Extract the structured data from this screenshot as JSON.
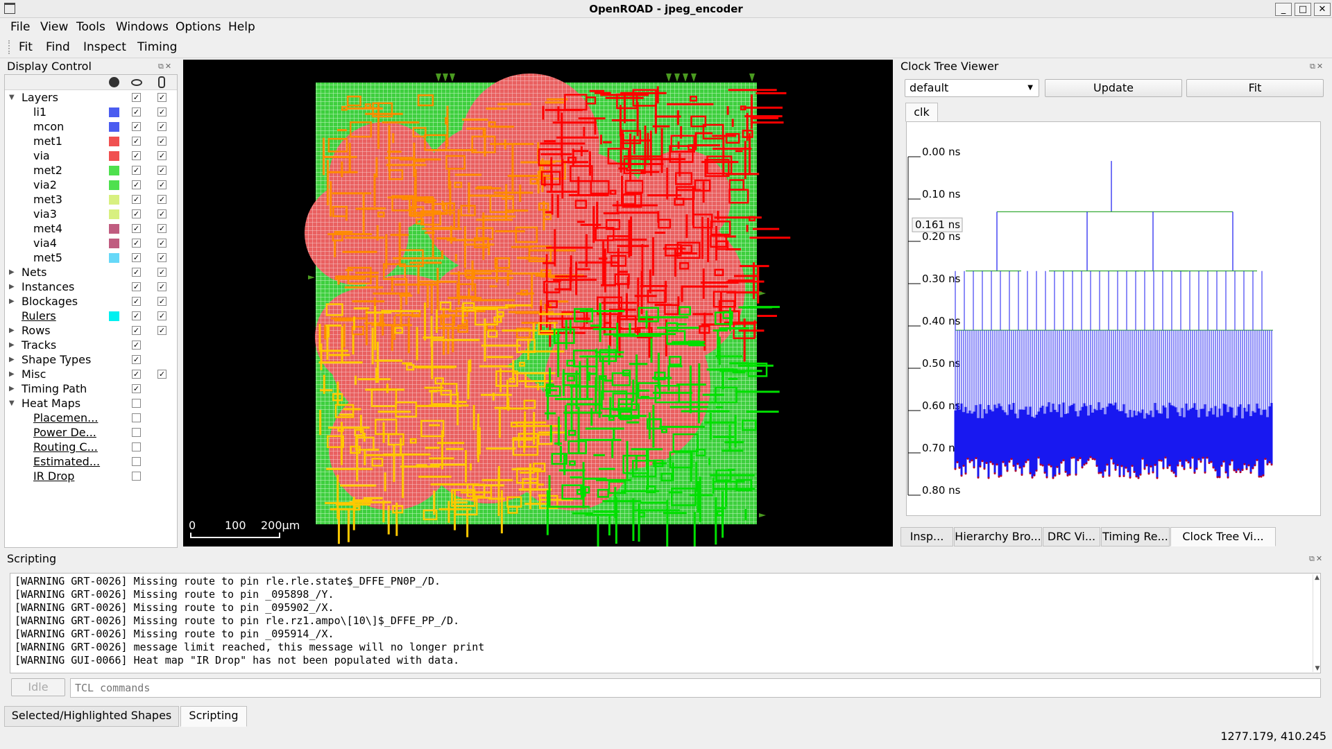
{
  "window": {
    "title": "OpenROAD - jpeg_encoder"
  },
  "menu": [
    "File",
    "View",
    "Tools",
    "Windows",
    "Options",
    "Help"
  ],
  "toolbar": [
    "Fit",
    "Find",
    "Inspect",
    "Timing"
  ],
  "display_control": {
    "title": "Display Control",
    "header_icons": [
      "palette-icon",
      "eye-icon",
      "pointer-icon"
    ],
    "rows": [
      {
        "label": "Layers",
        "level": 0,
        "expanded": true,
        "vis": true,
        "sel": true
      },
      {
        "label": "li1",
        "level": 1,
        "color": "#4a5cf0",
        "vis": true,
        "sel": true
      },
      {
        "label": "mcon",
        "level": 1,
        "color": "#4a5cf0",
        "vis": true,
        "sel": true
      },
      {
        "label": "met1",
        "level": 1,
        "color": "#f05050",
        "vis": true,
        "sel": true
      },
      {
        "label": "via",
        "level": 1,
        "color": "#f05050",
        "vis": true,
        "sel": true
      },
      {
        "label": "met2",
        "level": 1,
        "color": "#4ee04e",
        "vis": true,
        "sel": true
      },
      {
        "label": "via2",
        "level": 1,
        "color": "#4ee04e",
        "vis": true,
        "sel": true
      },
      {
        "label": "met3",
        "level": 1,
        "color": "#d8f080",
        "vis": true,
        "sel": true
      },
      {
        "label": "via3",
        "level": 1,
        "color": "#d8f080",
        "vis": true,
        "sel": true
      },
      {
        "label": "met4",
        "level": 1,
        "color": "#c05c80",
        "vis": true,
        "sel": true
      },
      {
        "label": "via4",
        "level": 1,
        "color": "#c05c80",
        "vis": true,
        "sel": true
      },
      {
        "label": "met5",
        "level": 1,
        "color": "#66d8f8",
        "vis": true,
        "sel": true
      },
      {
        "label": "Nets",
        "level": 0,
        "expanded": false,
        "vis": true,
        "sel": true
      },
      {
        "label": "Instances",
        "level": 0,
        "expanded": false,
        "vis": true,
        "sel": true
      },
      {
        "label": "Blockages",
        "level": 0,
        "expanded": false,
        "vis": true,
        "sel": true
      },
      {
        "label": "Rulers",
        "level": 0,
        "link": true,
        "color": "#00f0f0",
        "vis": true,
        "sel": true
      },
      {
        "label": "Rows",
        "level": 0,
        "expanded": false,
        "vis": true,
        "sel": true
      },
      {
        "label": "Tracks",
        "level": 0,
        "expanded": false,
        "vis": true
      },
      {
        "label": "Shape Types",
        "level": 0,
        "expanded": false,
        "vis": true
      },
      {
        "label": "Misc",
        "level": 0,
        "expanded": false,
        "vis": true,
        "sel": true
      },
      {
        "label": "Timing Path",
        "level": 0,
        "expanded": false,
        "vis": true
      },
      {
        "label": "Heat Maps",
        "level": 0,
        "expanded": true,
        "vis": false
      },
      {
        "label": "Placemen...",
        "level": 1,
        "link": true,
        "vis": false
      },
      {
        "label": "Power De...",
        "level": 1,
        "link": true,
        "vis": false
      },
      {
        "label": "Routing C...",
        "level": 1,
        "link": true,
        "vis": false
      },
      {
        "label": "Estimated...",
        "level": 1,
        "link": true,
        "vis": false
      },
      {
        "label": "IR Drop",
        "level": 1,
        "link": true,
        "vis": false
      }
    ]
  },
  "layout_view": {
    "scale_labels": [
      "0",
      "100",
      "200µm"
    ]
  },
  "clock_tree_viewer": {
    "title": "Clock Tree Viewer",
    "corner_select": "default",
    "update_label": "Update",
    "fit_label": "Fit",
    "clock_tab": "clk",
    "ticks": [
      "0.00 ns",
      "0.10 ns",
      "0.20 ns",
      "0.30 ns",
      "0.40 ns",
      "0.50 ns",
      "0.60 ns",
      "0.70 ns",
      "0.80 ns"
    ],
    "marker": "0.161 ns"
  },
  "right_tabs": [
    "Insp...",
    "Hierarchy Bro...",
    "DRC Vi...",
    "Timing Re...",
    "Clock Tree Vi..."
  ],
  "scripting": {
    "title": "Scripting",
    "log": [
      "[WARNING GRT-0026] Missing route to pin rle.rle.state$_DFFE_PN0P_/D.",
      "[WARNING GRT-0026] Missing route to pin _095898_/Y.",
      "[WARNING GRT-0026] Missing route to pin _095902_/X.",
      "[WARNING GRT-0026] Missing route to pin rle.rz1.ampo\\[10\\]$_DFFE_PP_/D.",
      "[WARNING GRT-0026] Missing route to pin _095914_/X.",
      "[WARNING GRT-0026] message limit reached, this message will no longer print",
      "[WARNING GUI-0066] Heat map \"IR Drop\" has not been populated with data."
    ],
    "status": "Idle",
    "placeholder": "TCL commands"
  },
  "bottom_tabs": [
    "Selected/Highlighted Shapes",
    "Scripting"
  ],
  "status_coords": "1277.179, 410.245",
  "colors": {
    "net_orange": "#ff8c00",
    "net_red": "#ff0000",
    "net_yellow": "#ffc800",
    "net_green": "#00e000",
    "clock_blue": "#1818f0"
  }
}
